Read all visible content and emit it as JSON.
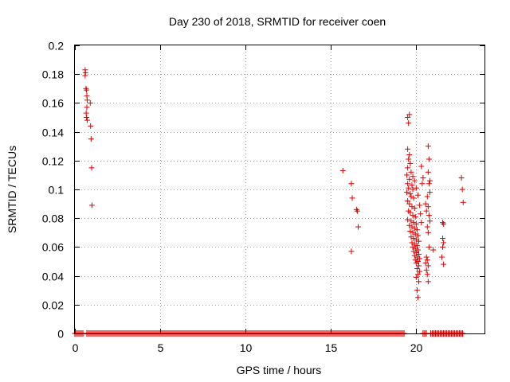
{
  "chart_data": {
    "type": "scatter",
    "title": "Day 230 of 2018, SRMTID for receiver coen",
    "xlabel": "GPS time / hours",
    "ylabel": "SRMTID / TECUs",
    "xlim": [
      0,
      24
    ],
    "ylim": [
      0,
      0.2
    ],
    "xticks": [
      0,
      5,
      10,
      15,
      20
    ],
    "xtick_labels": [
      "0",
      "5",
      "10",
      "15",
      "20"
    ],
    "yticks": [
      0,
      0.02,
      0.04,
      0.06,
      0.08,
      0.1,
      0.12,
      0.14,
      0.16,
      0.18,
      0.2
    ],
    "ytick_labels": [
      "0",
      "0.02",
      "0.04",
      "0.06",
      "0.08",
      "0.1",
      "0.12",
      "0.14",
      "0.16",
      "0.18",
      "0.2"
    ],
    "grid": true,
    "marker": "+",
    "color": "#e00000",
    "zero_segments": [
      [
        0.0,
        0.55
      ],
      [
        0.7,
        19.35
      ],
      [
        20.4,
        20.6
      ],
      [
        20.85,
        22.75
      ]
    ],
    "series": [
      {
        "name": "SRMTID",
        "points": [
          [
            0.6,
            0.183
          ],
          [
            0.6,
            0.179
          ],
          [
            0.62,
            0.181
          ],
          [
            0.65,
            0.17
          ],
          [
            0.68,
            0.169
          ],
          [
            0.7,
            0.165
          ],
          [
            0.72,
            0.162
          ],
          [
            0.7,
            0.157
          ],
          [
            0.66,
            0.153
          ],
          [
            0.68,
            0.15
          ],
          [
            0.72,
            0.148
          ],
          [
            0.9,
            0.16
          ],
          [
            0.92,
            0.144
          ],
          [
            0.95,
            0.135
          ],
          [
            0.98,
            0.115
          ],
          [
            1.0,
            0.089
          ],
          [
            15.7,
            0.113
          ],
          [
            16.2,
            0.104
          ],
          [
            16.25,
            0.094
          ],
          [
            16.2,
            0.057
          ],
          [
            16.5,
            0.086
          ],
          [
            16.55,
            0.085
          ],
          [
            16.6,
            0.074
          ],
          [
            19.5,
            0.15
          ],
          [
            19.6,
            0.152
          ],
          [
            19.55,
            0.146
          ],
          [
            19.5,
            0.128
          ],
          [
            19.6,
            0.124
          ],
          [
            19.55,
            0.121
          ],
          [
            19.65,
            0.118
          ],
          [
            19.5,
            0.115
          ],
          [
            19.7,
            0.112
          ],
          [
            19.45,
            0.11
          ],
          [
            19.6,
            0.107
          ],
          [
            19.5,
            0.104
          ],
          [
            19.75,
            0.103
          ],
          [
            19.55,
            0.101
          ],
          [
            19.8,
            0.1
          ],
          [
            19.45,
            0.098
          ],
          [
            19.65,
            0.097
          ],
          [
            19.7,
            0.095
          ],
          [
            19.85,
            0.094
          ],
          [
            19.5,
            0.092
          ],
          [
            19.6,
            0.09
          ],
          [
            19.75,
            0.088
          ],
          [
            19.9,
            0.087
          ],
          [
            19.55,
            0.085
          ],
          [
            19.65,
            0.084
          ],
          [
            19.8,
            0.082
          ],
          [
            19.95,
            0.081
          ],
          [
            19.5,
            0.079
          ],
          [
            19.7,
            0.078
          ],
          [
            19.85,
            0.077
          ],
          [
            20.0,
            0.076
          ],
          [
            19.6,
            0.075
          ],
          [
            19.75,
            0.074
          ],
          [
            19.9,
            0.073
          ],
          [
            20.05,
            0.072
          ],
          [
            19.65,
            0.071
          ],
          [
            19.8,
            0.07
          ],
          [
            19.95,
            0.069
          ],
          [
            20.1,
            0.068
          ],
          [
            19.7,
            0.067
          ],
          [
            19.85,
            0.066
          ],
          [
            20.0,
            0.065
          ],
          [
            20.15,
            0.064
          ],
          [
            19.75,
            0.063
          ],
          [
            19.9,
            0.062
          ],
          [
            20.05,
            0.061
          ],
          [
            19.8,
            0.06
          ],
          [
            19.95,
            0.059
          ],
          [
            20.1,
            0.058
          ],
          [
            19.85,
            0.057
          ],
          [
            20.0,
            0.056
          ],
          [
            20.15,
            0.055
          ],
          [
            19.9,
            0.054
          ],
          [
            20.05,
            0.053
          ],
          [
            20.2,
            0.052
          ],
          [
            19.95,
            0.051
          ],
          [
            20.1,
            0.05
          ],
          [
            20.0,
            0.049
          ],
          [
            20.15,
            0.047
          ],
          [
            20.05,
            0.045
          ],
          [
            20.2,
            0.043
          ],
          [
            20.1,
            0.041
          ],
          [
            20.0,
            0.039
          ],
          [
            20.15,
            0.036
          ],
          [
            20.05,
            0.03
          ],
          [
            20.1,
            0.025
          ],
          [
            19.8,
            0.109
          ],
          [
            19.9,
            0.106
          ],
          [
            20.0,
            0.101
          ],
          [
            20.1,
            0.096
          ],
          [
            20.2,
            0.089
          ],
          [
            20.3,
            0.077
          ],
          [
            20.25,
            0.083
          ],
          [
            20.3,
            0.116
          ],
          [
            20.35,
            0.104
          ],
          [
            20.4,
            0.108
          ],
          [
            20.55,
            0.09
          ],
          [
            20.6,
            0.085
          ],
          [
            20.7,
            0.13
          ],
          [
            20.75,
            0.121
          ],
          [
            20.7,
            0.112
          ],
          [
            20.8,
            0.106
          ],
          [
            20.75,
            0.104
          ],
          [
            20.8,
            0.098
          ],
          [
            20.65,
            0.095
          ],
          [
            20.7,
            0.088
          ],
          [
            20.75,
            0.082
          ],
          [
            20.8,
            0.078
          ],
          [
            20.65,
            0.074
          ],
          [
            20.7,
            0.07
          ],
          [
            20.75,
            0.06
          ],
          [
            20.6,
            0.053
          ],
          [
            20.65,
            0.051
          ],
          [
            20.55,
            0.049
          ],
          [
            20.7,
            0.047
          ],
          [
            20.6,
            0.044
          ],
          [
            20.65,
            0.041
          ],
          [
            20.7,
            0.036
          ],
          [
            21.0,
            0.058
          ],
          [
            21.55,
            0.077
          ],
          [
            21.6,
            0.076
          ],
          [
            21.55,
            0.066
          ],
          [
            21.6,
            0.063
          ],
          [
            21.55,
            0.06
          ],
          [
            21.5,
            0.053
          ],
          [
            21.6,
            0.048
          ],
          [
            22.65,
            0.108
          ],
          [
            22.7,
            0.1
          ],
          [
            22.75,
            0.091
          ]
        ]
      }
    ]
  }
}
